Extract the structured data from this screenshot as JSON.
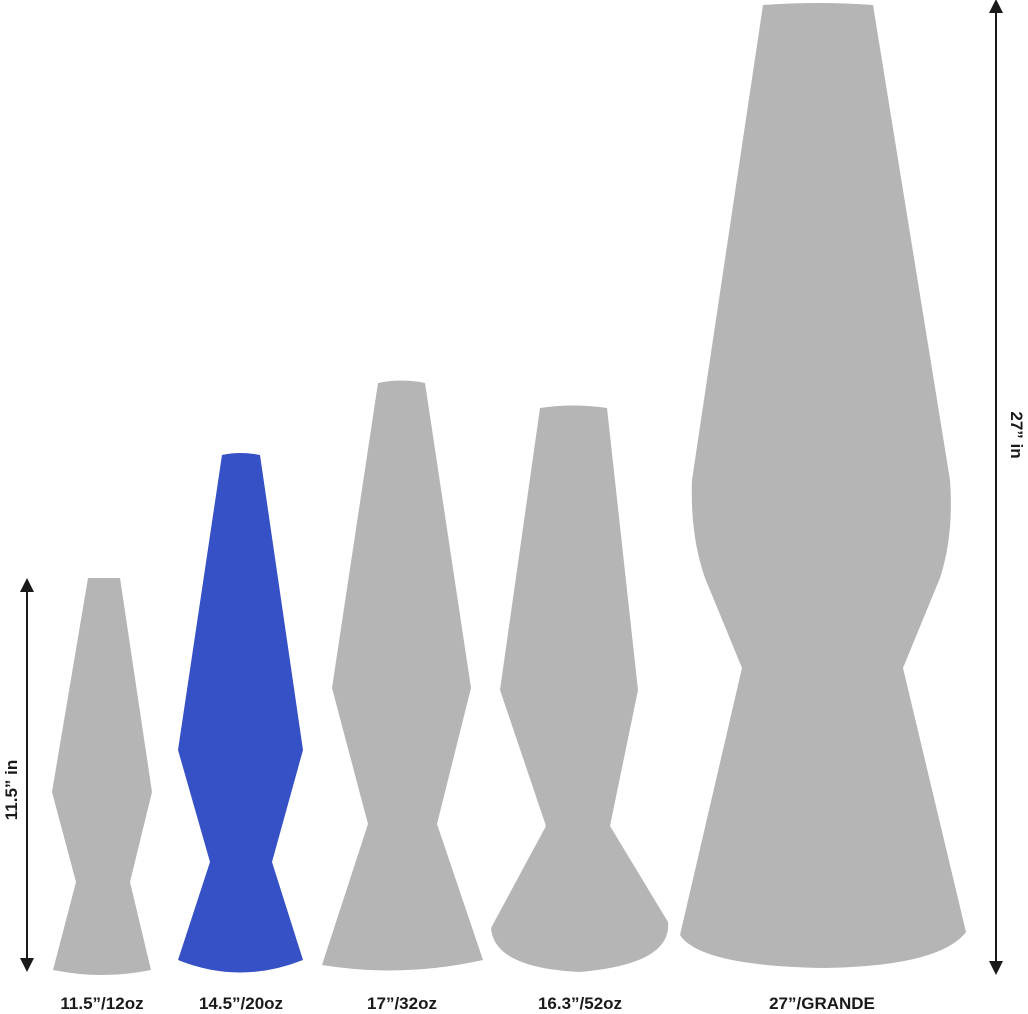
{
  "colors": {
    "lamp_default": "#b5b5b5",
    "lamp_highlight": "#3650c6",
    "dimension_line": "#1a1a1a",
    "text": "#1a1a1a"
  },
  "lamps": [
    {
      "label": "11.5”/12oz",
      "highlighted": false
    },
    {
      "label": "14.5”/20oz",
      "highlighted": true
    },
    {
      "label": "17”/32oz",
      "highlighted": false
    },
    {
      "label": "16.3”/52oz",
      "highlighted": false
    },
    {
      "label": "27”/GRANDE",
      "highlighted": false
    }
  ],
  "dimensions": {
    "left": {
      "label": "11.5” in",
      "value_in": 11.5
    },
    "right": {
      "label": "27” in",
      "value_in": 27
    }
  }
}
